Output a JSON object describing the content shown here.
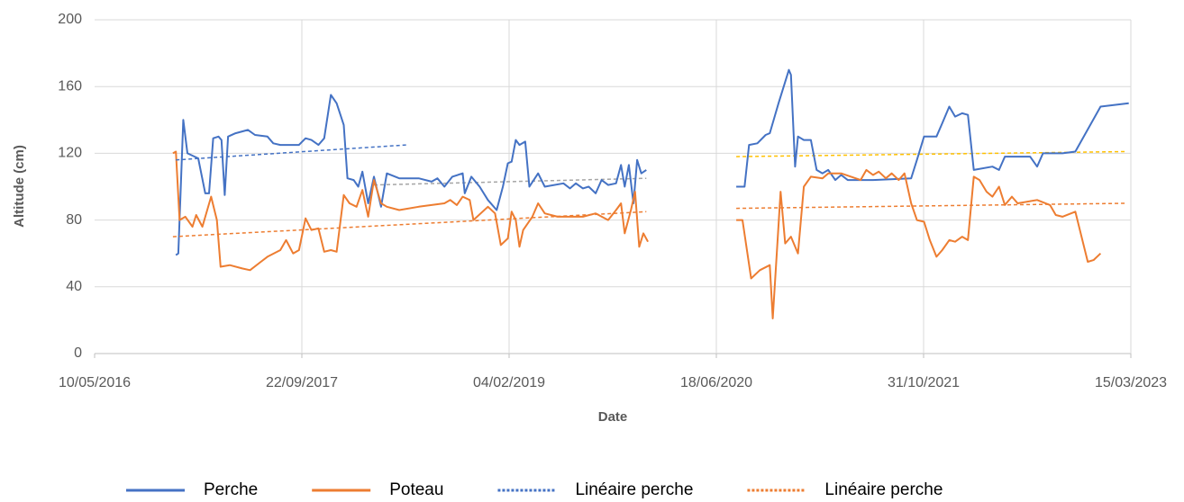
{
  "chart_data": {
    "type": "line",
    "x_label": "Date",
    "y_label": "Altitude (cm)",
    "xlim": [
      "10/05/2016",
      "15/03/2023"
    ],
    "xticks": [
      "10/05/2016",
      "22/09/2017",
      "04/02/2019",
      "18/06/2020",
      "31/10/2021",
      "15/03/2023"
    ],
    "ylim": [
      0,
      200
    ],
    "yticks": [
      0,
      40,
      80,
      120,
      160,
      200
    ],
    "grid": true,
    "legend": "bottom",
    "series": [
      {
        "name": "Perche",
        "color": "#4472c4",
        "style": "solid",
        "x": [
          "22/11/2016",
          "28/11/2016",
          "10/12/2016",
          "20/12/2016",
          "15/01/2017",
          "01/02/2017",
          "10/02/2017",
          "20/02/2017",
          "05/03/2017",
          "12/03/2017",
          "20/03/2017",
          "28/03/2017",
          "15/04/2017",
          "15/05/2017",
          "01/06/2017",
          "01/07/2017",
          "15/07/2017",
          "01/08/2017",
          "15/09/2017",
          "01/10/2017",
          "15/10/2017",
          "01/11/2017",
          "15/11/2017",
          "01/12/2017",
          "15/12/2017",
          "01/01/2018",
          "10/01/2018",
          "25/01/2018",
          "05/02/2018",
          "15/02/2018",
          "01/03/2018",
          "15/03/2018",
          "01/04/2018",
          "15/04/2018",
          "15/05/2018",
          "01/07/2018",
          "01/08/2018",
          "15/08/2018",
          "01/09/2018",
          "20/09/2018",
          "15/10/2018",
          "20/10/2018",
          "05/11/2018",
          "25/11/2018",
          "15/12/2018",
          "05/01/2019",
          "20/01/2019",
          "01/02/2019",
          "10/02/2019",
          "20/02/2019",
          "01/03/2019",
          "15/03/2019",
          "25/03/2019",
          "15/04/2019",
          "01/05/2019",
          "15/06/2019",
          "01/07/2019",
          "15/07/2019",
          "01/08/2019",
          "15/08/2019",
          "01/09/2019",
          "15/09/2019",
          "01/10/2019",
          "20/10/2019",
          "01/11/2019",
          "10/11/2019",
          "20/11/2019",
          "01/12/2019",
          "10/12/2019",
          "20/12/2019",
          "01/01/2020",
          "01/04/2020",
          "05/08/2020",
          "25/08/2020",
          "05/09/2020",
          "25/09/2020",
          "15/10/2020",
          "25/10/2020",
          "15/11/2020",
          "10/12/2020",
          "15/12/2020",
          "25/12/2020",
          "01/01/2021",
          "15/01/2021",
          "01/02/2021",
          "15/02/2021",
          "01/03/2021",
          "15/03/2021",
          "01/04/2021",
          "15/04/2021",
          "01/05/2021",
          "01/07/2021",
          "01/10/2021",
          "15/10/2021",
          "01/11/2021",
          "01/12/2021",
          "15/12/2021",
          "01/01/2022",
          "15/01/2022",
          "01/02/2022",
          "15/02/2022",
          "01/03/2022",
          "15/04/2022",
          "01/05/2022",
          "15/05/2022",
          "15/07/2022",
          "01/08/2022",
          "15/08/2022",
          "01/10/2022",
          "01/11/2022",
          "01/01/2023",
          "10/03/2023"
        ],
        "values": [
          59,
          60,
          140,
          120,
          117,
          96,
          96,
          129,
          130,
          128,
          95,
          130,
          132,
          134,
          131,
          130,
          126,
          125,
          125,
          129,
          128,
          125,
          129,
          155,
          150,
          137,
          105,
          104,
          100,
          109,
          90,
          106,
          88,
          108,
          105,
          105,
          103,
          105,
          100,
          106,
          108,
          96,
          106,
          100,
          92,
          86,
          100,
          114,
          115,
          128,
          125,
          127,
          100,
          108,
          100,
          102,
          99,
          102,
          99,
          100,
          96,
          104,
          101,
          102,
          113,
          100,
          113,
          90,
          116,
          108,
          110,
          null,
          100,
          100,
          125,
          126,
          131,
          132,
          150,
          170,
          167,
          112,
          130,
          128,
          128,
          110,
          108,
          110,
          104,
          107,
          104,
          104,
          105,
          116,
          130,
          130,
          138,
          148,
          142,
          144,
          143,
          110,
          112,
          110,
          118,
          118,
          112,
          120,
          120,
          121,
          148,
          150
        ]
      },
      {
        "name": "Poteau",
        "color": "#ed7d31",
        "style": "solid",
        "x": [
          "15/11/2016",
          "22/11/2016",
          "01/12/2016",
          "15/12/2016",
          "01/01/2017",
          "10/01/2017",
          "25/01/2017",
          "15/02/2017",
          "01/03/2017",
          "10/03/2017",
          "01/04/2017",
          "01/05/2017",
          "20/05/2017",
          "15/06/2017",
          "01/07/2017",
          "01/08/2017",
          "15/08/2017",
          "01/09/2017",
          "15/09/2017",
          "01/10/2017",
          "15/10/2017",
          "01/11/2017",
          "15/11/2017",
          "01/12/2017",
          "15/12/2017",
          "01/01/2018",
          "15/01/2018",
          "01/02/2018",
          "15/02/2018",
          "01/03/2018",
          "15/03/2018",
          "01/04/2018",
          "15/04/2018",
          "15/05/2018",
          "01/07/2018",
          "01/09/2018",
          "15/09/2018",
          "01/10/2018",
          "15/10/2018",
          "01/11/2018",
          "10/11/2018",
          "15/12/2018",
          "01/01/2019",
          "15/01/2019",
          "01/02/2019",
          "10/02/2019",
          "20/02/2019",
          "01/03/2019",
          "10/03/2019",
          "01/04/2019",
          "15/04/2019",
          "01/05/2019",
          "01/06/2019",
          "01/08/2019",
          "01/09/2019",
          "01/10/2019",
          "20/10/2019",
          "01/11/2019",
          "10/11/2019",
          "25/11/2019",
          "05/12/2019",
          "15/12/2019",
          "25/12/2019",
          "05/01/2020",
          "01/04/2020",
          "05/08/2020",
          "20/08/2020",
          "10/09/2020",
          "01/10/2020",
          "25/10/2020",
          "01/11/2020",
          "20/11/2020",
          "01/12/2020",
          "15/12/2020",
          "01/01/2021",
          "15/01/2021",
          "01/02/2021",
          "01/03/2021",
          "15/03/2021",
          "15/04/2021",
          "01/06/2021",
          "15/06/2021",
          "01/07/2021",
          "15/07/2021",
          "01/08/2021",
          "15/08/2021",
          "01/09/2021",
          "15/09/2021",
          "01/10/2021",
          "15/10/2021",
          "01/11/2021",
          "15/11/2021",
          "01/12/2021",
          "15/12/2021",
          "01/01/2022",
          "15/01/2022",
          "01/02/2022",
          "15/02/2022",
          "01/03/2022",
          "15/03/2022",
          "01/04/2022",
          "15/04/2022",
          "01/05/2022",
          "15/05/2022",
          "01/06/2022",
          "15/06/2022",
          "01/08/2022",
          "01/09/2022",
          "15/09/2022",
          "01/10/2022",
          "01/11/2022",
          "01/12/2022",
          "15/12/2022",
          "01/01/2023"
        ],
        "values": [
          120,
          121,
          80,
          82,
          76,
          83,
          76,
          94,
          80,
          52,
          53,
          51,
          50,
          55,
          58,
          62,
          68,
          60,
          62,
          81,
          74,
          75,
          61,
          62,
          61,
          95,
          90,
          88,
          98,
          82,
          104,
          90,
          88,
          86,
          88,
          90,
          92,
          89,
          94,
          92,
          80,
          88,
          84,
          65,
          69,
          85,
          80,
          64,
          74,
          82,
          90,
          84,
          82,
          82,
          84,
          80,
          86,
          90,
          72,
          86,
          97,
          64,
          72,
          67,
          null,
          80,
          80,
          45,
          50,
          53,
          21,
          97,
          66,
          70,
          60,
          100,
          106,
          105,
          108,
          108,
          104,
          110,
          107,
          109,
          105,
          108,
          104,
          108,
          90,
          80,
          79,
          68,
          58,
          62,
          68,
          67,
          70,
          68,
          106,
          104,
          97,
          94,
          100,
          89,
          94,
          90,
          92,
          89,
          83,
          82,
          85,
          55,
          56,
          60
        ]
      },
      {
        "name": "Linéaire perche",
        "color": "#4472c4",
        "style": "dashed",
        "x": [
          "22/11/2016",
          "01/06/2018"
        ],
        "values": [
          116,
          125
        ]
      },
      {
        "name": "Linéaire perche",
        "color": "#ed7d31",
        "style": "dashed",
        "x": [
          "15/11/2016",
          "01/01/2020",
          "01/04/2020",
          "05/08/2020",
          "01/03/2023"
        ],
        "values": [
          70,
          85,
          null,
          87,
          90
        ]
      }
    ],
    "trendlines": [
      {
        "color": "#a5a5a5",
        "x": [
          "15/03/2018",
          "01/01/2020"
        ],
        "values": [
          101,
          105
        ]
      },
      {
        "color": "#ffc000",
        "x": [
          "05/08/2020",
          "01/03/2023"
        ],
        "values": [
          118,
          121
        ]
      }
    ]
  }
}
